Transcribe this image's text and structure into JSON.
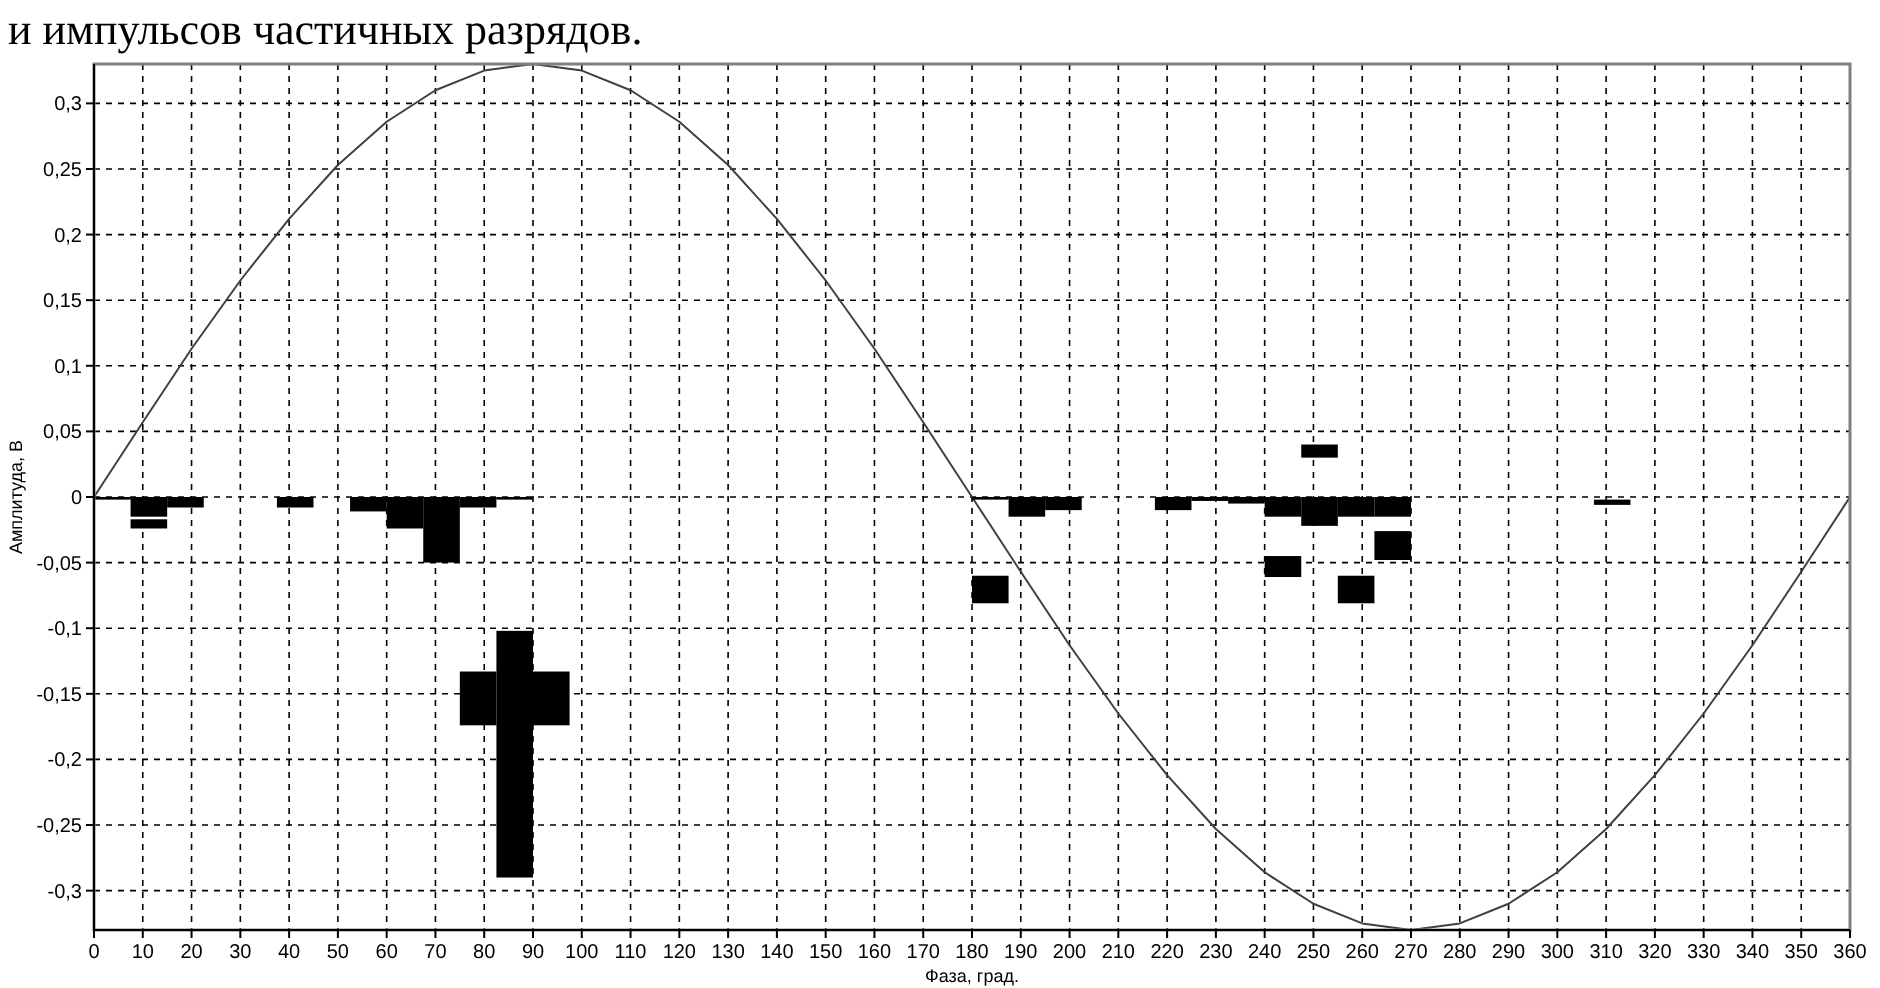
{
  "chart_data": {
    "type": "bar",
    "title": "и импульсов частичных разрядов.",
    "xlabel": "Фаза, град.",
    "ylabel": "Амплитуда, В",
    "xlim": [
      0,
      360
    ],
    "xticks": [
      0,
      10,
      20,
      30,
      40,
      50,
      60,
      70,
      80,
      90,
      100,
      110,
      120,
      130,
      140,
      150,
      160,
      170,
      180,
      190,
      200,
      210,
      220,
      230,
      240,
      250,
      260,
      270,
      280,
      290,
      300,
      310,
      320,
      330,
      340,
      350,
      360
    ],
    "ylim": [
      -0.33,
      0.33
    ],
    "yticks": [
      {
        "value": -0.3,
        "label": "-0,3"
      },
      {
        "value": -0.25,
        "label": "-0,25"
      },
      {
        "value": -0.2,
        "label": "-0,2"
      },
      {
        "value": -0.15,
        "label": "-0,15"
      },
      {
        "value": -0.1,
        "label": "-0,1"
      },
      {
        "value": -0.05,
        "label": "-0,05"
      },
      {
        "value": 0,
        "label": "0"
      },
      {
        "value": 0.05,
        "label": "0,05"
      },
      {
        "value": 0.1,
        "label": "0,1"
      },
      {
        "value": 0.15,
        "label": "0,15"
      },
      {
        "value": 0.2,
        "label": "0,2"
      },
      {
        "value": 0.25,
        "label": "0,25"
      },
      {
        "value": 0.3,
        "label": "0,3"
      }
    ],
    "grid": true,
    "series": [
      {
        "type": "line",
        "color": "#404040",
        "x": [
          0,
          10,
          20,
          30,
          40,
          50,
          60,
          70,
          80,
          90,
          100,
          110,
          120,
          130,
          140,
          150,
          160,
          170,
          180,
          190,
          200,
          210,
          220,
          230,
          240,
          250,
          260,
          270,
          280,
          290,
          300,
          310,
          320,
          330,
          340,
          350,
          360
        ],
        "values": [
          0,
          0.057,
          0.113,
          0.165,
          0.212,
          0.253,
          0.286,
          0.31,
          0.325,
          0.33,
          0.325,
          0.31,
          0.286,
          0.253,
          0.212,
          0.165,
          0.113,
          0.057,
          0,
          -0.057,
          -0.113,
          -0.165,
          -0.212,
          -0.253,
          -0.286,
          -0.31,
          -0.325,
          -0.33,
          -0.325,
          -0.31,
          -0.286,
          -0.253,
          -0.212,
          -0.165,
          -0.113,
          -0.057,
          0
        ]
      },
      {
        "color": "#000000",
        "x": [
          3.75,
          11.25,
          18.75,
          41.25,
          56.25,
          63.75,
          71.25,
          78.75,
          86.25,
          183.75,
          191.25,
          198.75,
          221.25,
          228.75,
          236.25,
          243.75,
          251.25,
          258.75,
          266.25,
          311.25
        ],
        "base": [
          0,
          0,
          0,
          0,
          0,
          0,
          0,
          0,
          0,
          0,
          0,
          0,
          0,
          0,
          0,
          0,
          0,
          0,
          0,
          -0.002
        ],
        "values": [
          -0.002,
          -0.015,
          -0.008,
          -0.008,
          -0.011,
          -0.024,
          -0.05,
          -0.008,
          -0.002,
          -0.002,
          -0.015,
          -0.01,
          -0.01,
          -0.003,
          -0.005,
          -0.015,
          -0.022,
          -0.015,
          -0.015,
          -0.004
        ]
      },
      {
        "color": "#000000",
        "x": [
          11.25,
          78.75,
          86.25,
          93.75,
          183.75,
          243.75,
          251.25,
          258.75,
          266.25
        ],
        "base": [
          -0.017,
          -0.133,
          -0.102,
          -0.133,
          -0.06,
          -0.045,
          0.03,
          -0.06,
          -0.026
        ],
        "values": [
          -0.007,
          -0.041,
          -0.188,
          -0.041,
          -0.021,
          -0.016,
          0.01,
          -0.021,
          -0.022
        ]
      }
    ]
  }
}
